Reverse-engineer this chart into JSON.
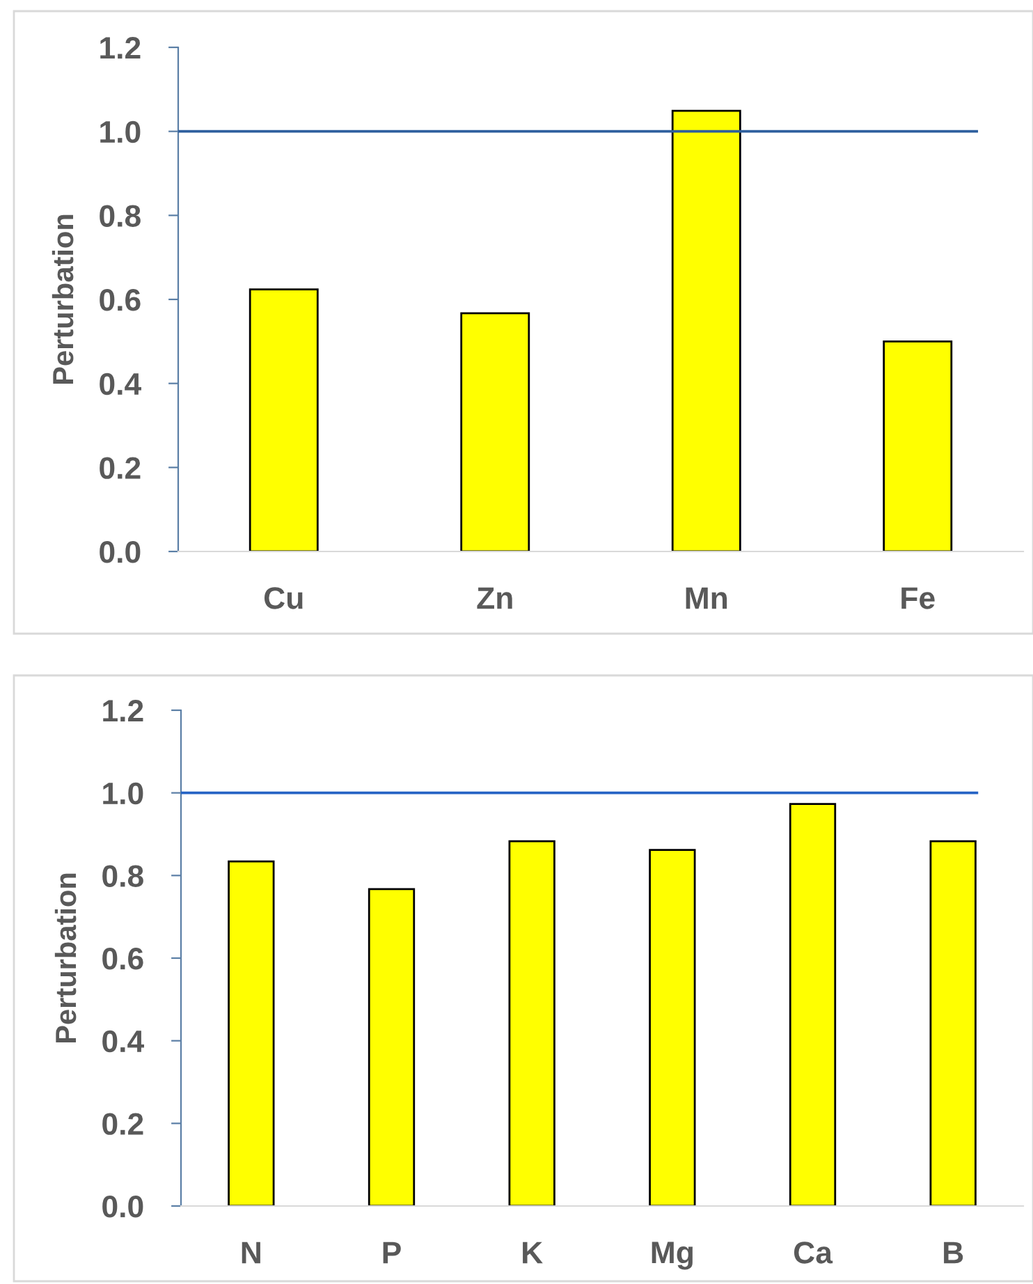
{
  "chart_data": [
    {
      "type": "bar",
      "ylabel": "Perturbation",
      "categories": [
        "Cu",
        "Zn",
        "Mn",
        "Fe"
      ],
      "values": [
        0.624,
        0.567,
        1.049,
        0.5
      ],
      "color": "#ffff00",
      "ylim": [
        0,
        1.2
      ],
      "yticks": [
        {
          "value": 0,
          "label": "0.0"
        },
        {
          "value": 0.2,
          "label": "0.2"
        },
        {
          "value": 0.4,
          "label": "0.4"
        },
        {
          "value": 0.6,
          "label": "0.6"
        },
        {
          "value": 0.8,
          "label": "0.8"
        },
        {
          "value": 1.0,
          "label": "1.0"
        },
        {
          "value": 1.2,
          "label": "1.2"
        }
      ],
      "grid": false,
      "ref_lines": [
        {
          "axis": "y",
          "value": 1.0,
          "color": "#2e5f9e"
        }
      ]
    },
    {
      "type": "bar",
      "ylabel": "Perturbation",
      "categories": [
        "N",
        "P",
        "K",
        "Mg",
        "Ca",
        "B"
      ],
      "values": [
        0.834,
        0.767,
        0.883,
        0.862,
        0.973,
        0.883
      ],
      "color": "#ffff00",
      "ylim": [
        0,
        1.2
      ],
      "yticks": [
        {
          "value": 0,
          "label": "0.0"
        },
        {
          "value": 0.2,
          "label": "0.2"
        },
        {
          "value": 0.4,
          "label": "0.4"
        },
        {
          "value": 0.6,
          "label": "0.6"
        },
        {
          "value": 0.8,
          "label": "0.8"
        },
        {
          "value": 1.0,
          "label": "1.0"
        },
        {
          "value": 1.2,
          "label": "1.2"
        }
      ],
      "grid": false,
      "ref_lines": [
        {
          "axis": "y",
          "value": 1.0,
          "color": "#2563c4"
        }
      ]
    }
  ]
}
